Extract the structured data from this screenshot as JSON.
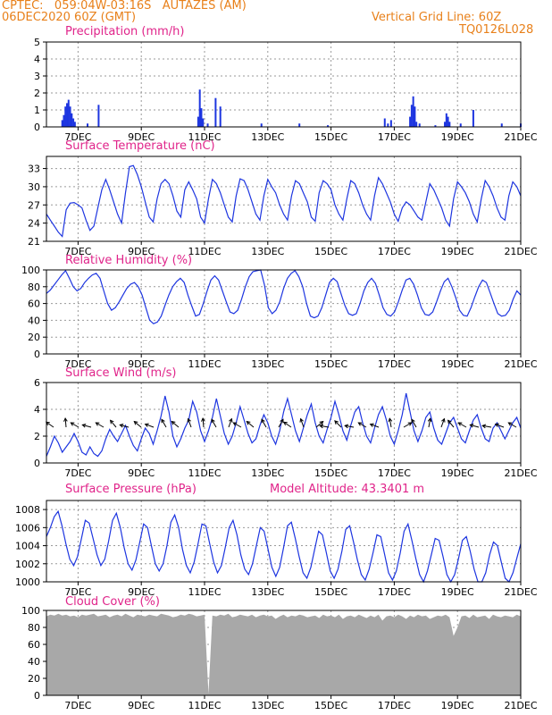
{
  "header": {
    "line1": "CPTEC:   059:04W-03:16S   AUTAZES (AM)",
    "line2": "06DEC2020 60Z (GMT)",
    "grid_note": "Vertical Grid Line: 60Z",
    "code": "TQ0126L028"
  },
  "colors": {
    "header": "#e8801a",
    "title": "#e0248a",
    "series": "#1d35e0",
    "cloud": "#a8a8a8",
    "grid": "#9a9a9a"
  },
  "chart_data": [
    {
      "type": "bar",
      "title": "Precipitation (mm/h)",
      "x_ticks": [
        "7DEC",
        "9DEC",
        "11DEC",
        "13DEC",
        "15DEC",
        "17DEC",
        "19DEC",
        "21DEC"
      ],
      "ylim": [
        0,
        5
      ],
      "y_ticks": [
        0,
        1,
        2,
        3,
        4,
        5
      ],
      "x": [
        6.5,
        6.55,
        6.6,
        6.65,
        6.7,
        6.75,
        6.8,
        6.85,
        6.9,
        7.3,
        7.65,
        10.8,
        10.85,
        10.9,
        10.95,
        11.1,
        11.35,
        11.5,
        12.8,
        14.0,
        14.9,
        16.7,
        16.8,
        16.9,
        17.5,
        17.55,
        17.6,
        17.65,
        17.7,
        17.8,
        18.3,
        18.6,
        18.65,
        18.7,
        18.75,
        19.1,
        19.5,
        20.4,
        21.0
      ],
      "values": [
        0.4,
        0.7,
        1.2,
        1.4,
        1.6,
        1.2,
        0.8,
        0.5,
        0.3,
        0.2,
        1.3,
        0.6,
        2.2,
        1.1,
        0.5,
        0.2,
        1.7,
        1.2,
        0.2,
        0.2,
        0.1,
        0.5,
        0.2,
        0.4,
        0.6,
        1.3,
        1.8,
        1.2,
        0.3,
        0.2,
        0.1,
        0.3,
        0.8,
        0.6,
        0.3,
        0.2,
        1.0,
        0.2,
        0.2
      ]
    },
    {
      "type": "line",
      "title": "Surface Temperature (nC)",
      "x_ticks": [
        "7DEC",
        "9DEC",
        "11DEC",
        "13DEC",
        "15DEC",
        "17DEC",
        "19DEC",
        "21DEC"
      ],
      "ylim": [
        21,
        35
      ],
      "y_ticks": [
        21,
        24,
        27,
        30,
        33
      ],
      "y": [
        25.5,
        24.5,
        23.5,
        22.5,
        21.8,
        26.2,
        27.3,
        27.4,
        27.0,
        26.5,
        24.5,
        22.8,
        23.5,
        26.5,
        29.5,
        31.2,
        29.5,
        27.5,
        25.5,
        24.0,
        29.0,
        33.3,
        33.5,
        32.0,
        30.0,
        27.5,
        25.0,
        24.2,
        28.0,
        30.5,
        31.2,
        30.5,
        28.5,
        26.0,
        25.0,
        29.5,
        30.8,
        29.5,
        28.0,
        25.0,
        24.0,
        28.0,
        31.2,
        30.5,
        29.0,
        27.0,
        25.0,
        24.2,
        28.5,
        31.3,
        31.0,
        29.5,
        27.5,
        25.5,
        24.5,
        28.5,
        31.2,
        30.0,
        29.0,
        27.0,
        25.5,
        24.5,
        28.5,
        31.0,
        30.5,
        29.0,
        27.5,
        25.0,
        24.3,
        29.0,
        31.0,
        30.5,
        29.5,
        27.0,
        25.5,
        24.5,
        28.0,
        31.0,
        30.5,
        29.0,
        27.0,
        25.5,
        24.5,
        28.5,
        31.5,
        30.5,
        29.0,
        27.5,
        25.5,
        24.3,
        26.5,
        27.5,
        27.0,
        26.0,
        25.0,
        24.5,
        27.5,
        30.5,
        29.5,
        28.0,
        26.5,
        24.5,
        23.5,
        28.0,
        30.8,
        30.0,
        29.0,
        27.5,
        25.5,
        24.2,
        28.0,
        31.0,
        30.0,
        28.5,
        26.5,
        25.0,
        24.5,
        28.5,
        30.8,
        30.0,
        28.5
      ]
    },
    {
      "type": "line",
      "title": "Relative Humidity (%)",
      "x_ticks": [
        "7DEC",
        "9DEC",
        "11DEC",
        "13DEC",
        "15DEC",
        "17DEC",
        "19DEC",
        "21DEC"
      ],
      "ylim": [
        0,
        100
      ],
      "y_ticks": [
        0,
        20,
        40,
        60,
        80,
        100
      ],
      "y": [
        72,
        76,
        82,
        88,
        94,
        99,
        90,
        80,
        75,
        78,
        85,
        90,
        94,
        96,
        90,
        75,
        60,
        52,
        55,
        62,
        70,
        78,
        83,
        85,
        80,
        70,
        55,
        40,
        36,
        38,
        45,
        58,
        70,
        80,
        86,
        90,
        85,
        70,
        57,
        45,
        47,
        60,
        75,
        88,
        93,
        88,
        75,
        62,
        50,
        48,
        52,
        65,
        80,
        92,
        98,
        99,
        100,
        82,
        55,
        48,
        52,
        62,
        78,
        90,
        96,
        99,
        92,
        80,
        60,
        45,
        43,
        45,
        55,
        70,
        85,
        90,
        86,
        72,
        58,
        48,
        46,
        48,
        60,
        75,
        85,
        90,
        84,
        70,
        55,
        47,
        45,
        50,
        62,
        76,
        88,
        90,
        83,
        70,
        55,
        47,
        46,
        50,
        62,
        75,
        86,
        90,
        80,
        67,
        52,
        46,
        45,
        55,
        68,
        80,
        88,
        85,
        73,
        60,
        48,
        45,
        46,
        52,
        65,
        75,
        70
      ]
    },
    {
      "type": "line",
      "title": "Surface Wind (m/s)",
      "x_ticks": [
        "7DEC",
        "9DEC",
        "11DEC",
        "13DEC",
        "15DEC",
        "17DEC",
        "19DEC",
        "21DEC"
      ],
      "ylim": [
        0,
        6
      ],
      "y_ticks": [
        0,
        2,
        4,
        6
      ],
      "y": [
        0.5,
        1.2,
        2.0,
        1.5,
        0.8,
        1.2,
        1.6,
        2.2,
        1.6,
        0.8,
        0.6,
        1.2,
        0.7,
        0.5,
        0.9,
        1.8,
        2.5,
        2.0,
        1.6,
        2.2,
        2.8,
        2.0,
        1.3,
        0.9,
        1.8,
        2.6,
        2.2,
        1.4,
        2.4,
        3.5,
        5.0,
        3.8,
        2.0,
        1.2,
        1.8,
        2.6,
        3.2,
        4.6,
        3.8,
        2.4,
        1.6,
        2.4,
        3.4,
        4.8,
        3.5,
        2.2,
        1.4,
        2.0,
        3.0,
        4.2,
        3.2,
        2.2,
        1.5,
        1.8,
        2.8,
        3.6,
        3.0,
        2.0,
        1.4,
        2.4,
        3.8,
        4.8,
        3.6,
        2.4,
        1.6,
        2.6,
        3.6,
        4.4,
        3.0,
        2.0,
        1.5,
        2.5,
        3.4,
        4.6,
        3.6,
        2.4,
        1.7,
        2.8,
        3.8,
        4.2,
        3.0,
        2.0,
        1.5,
        2.6,
        3.6,
        4.2,
        3.2,
        2.0,
        1.4,
        2.4,
        3.6,
        5.2,
        3.8,
        2.4,
        1.6,
        2.4,
        3.4,
        3.8,
        2.6,
        1.7,
        1.4,
        2.2,
        3.0,
        3.4,
        2.6,
        1.8,
        1.5,
        2.4,
        3.2,
        3.6,
        2.6,
        1.8,
        1.6,
        2.6,
        3.0,
        2.4,
        1.8,
        2.4,
        3.0,
        3.4,
        2.6
      ]
    },
    {
      "type": "line",
      "title": "Surface Pressure (hPa)",
      "model_altitude": "Model Altitude: 43.3401 m",
      "x_ticks": [
        "7DEC",
        "9DEC",
        "11DEC",
        "13DEC",
        "15DEC",
        "17DEC",
        "19DEC",
        "21DEC"
      ],
      "ylim": [
        1000,
        1009
      ],
      "y_ticks": [
        1000,
        1002,
        1004,
        1006,
        1008
      ],
      "y": [
        1005.0,
        1006.0,
        1007.2,
        1007.8,
        1006.2,
        1004.2,
        1002.5,
        1001.8,
        1002.8,
        1004.8,
        1006.8,
        1006.5,
        1004.8,
        1003.0,
        1001.8,
        1002.5,
        1004.5,
        1006.8,
        1007.6,
        1006.0,
        1003.8,
        1002.0,
        1001.3,
        1002.4,
        1004.4,
        1006.4,
        1006.0,
        1004.0,
        1002.0,
        1001.2,
        1002.0,
        1004.0,
        1006.6,
        1007.4,
        1006.0,
        1003.6,
        1001.8,
        1001.0,
        1002.2,
        1004.2,
        1006.4,
        1006.2,
        1004.2,
        1002.2,
        1001.0,
        1001.8,
        1003.8,
        1006.0,
        1006.8,
        1005.2,
        1003.0,
        1001.4,
        1000.8,
        1002.0,
        1004.0,
        1006.0,
        1005.6,
        1003.6,
        1001.6,
        1000.6,
        1001.6,
        1003.8,
        1006.2,
        1006.6,
        1004.8,
        1002.8,
        1001.0,
        1000.4,
        1001.6,
        1003.6,
        1005.6,
        1005.2,
        1003.2,
        1001.2,
        1000.4,
        1001.4,
        1003.4,
        1005.8,
        1006.2,
        1004.4,
        1002.4,
        1000.8,
        1000.2,
        1001.4,
        1003.2,
        1005.2,
        1005.0,
        1003.0,
        1001.0,
        1000.2,
        1001.2,
        1003.2,
        1005.6,
        1006.4,
        1004.6,
        1002.6,
        1000.8,
        1000.0,
        1001.2,
        1003.0,
        1004.8,
        1004.6,
        1002.8,
        1000.8,
        1000.0,
        1000.8,
        1002.6,
        1004.6,
        1005.0,
        1003.4,
        1001.4,
        1000.0,
        1000.0,
        1001.0,
        1003.0,
        1004.4,
        1004.0,
        1002.2,
        1000.4,
        1000.0,
        1001.0,
        1002.6,
        1004.2
      ]
    },
    {
      "type": "area",
      "title": "Cloud Cover (%)",
      "x_ticks": [
        "7DEC",
        "9DEC",
        "11DEC",
        "13DEC",
        "15DEC",
        "17DEC",
        "19DEC",
        "21DEC"
      ],
      "ylim": [
        0,
        100
      ],
      "y_ticks": [
        0,
        20,
        40,
        60,
        80,
        100
      ],
      "y": [
        93,
        95,
        94,
        96,
        94,
        95,
        93,
        94,
        92,
        95,
        94,
        95,
        96,
        93,
        94,
        95,
        92,
        94,
        95,
        93,
        96,
        94,
        92,
        95,
        94,
        93,
        95,
        94,
        93,
        96,
        95,
        94,
        92,
        93,
        95,
        94,
        96,
        95,
        93,
        94,
        95,
        2,
        94,
        93,
        95,
        94,
        96,
        92,
        93,
        95,
        94,
        93,
        95,
        92,
        94,
        95,
        93,
        94,
        90,
        93,
        95,
        92,
        94,
        93,
        95,
        94,
        92,
        93,
        94,
        91,
        95,
        93,
        94,
        92,
        95,
        90,
        93,
        94,
        92,
        95,
        93,
        91,
        94,
        92,
        95,
        88,
        93,
        94,
        92,
        95,
        93,
        90,
        94,
        92,
        95,
        93,
        94,
        90,
        92,
        94,
        93,
        95,
        92,
        70,
        80,
        93,
        94,
        91,
        95,
        92,
        93,
        94,
        90,
        95,
        93,
        92,
        94,
        93,
        92,
        95,
        93
      ]
    }
  ]
}
